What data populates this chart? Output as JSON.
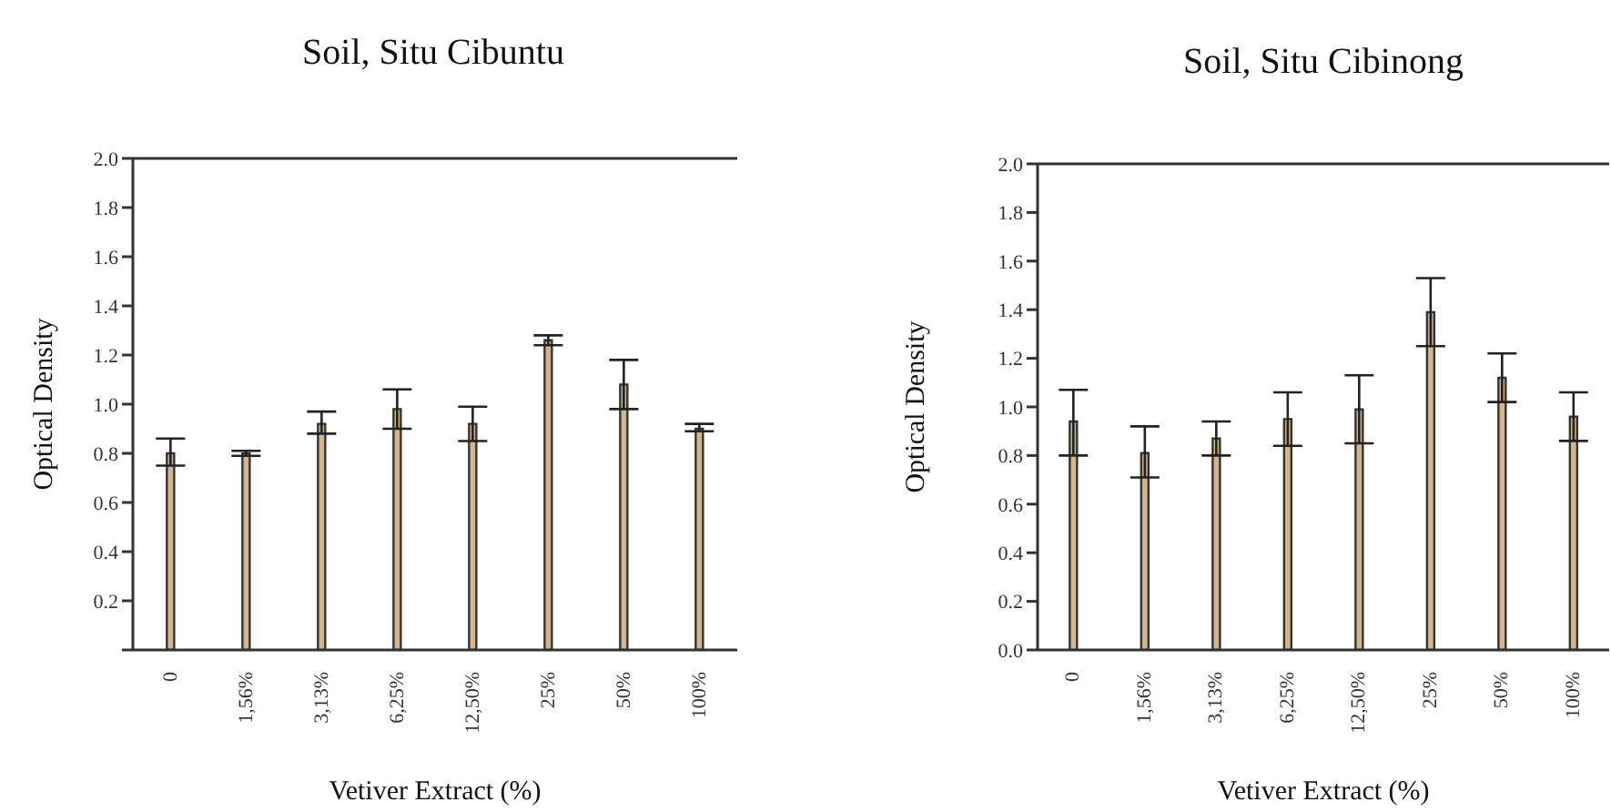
{
  "chart_data": [
    {
      "type": "bar",
      "title": "Soil, Situ Cibuntu",
      "xlabel": "Vetiver Extract (%)",
      "ylabel": "Optical Density",
      "categories": [
        "0",
        "1,56%",
        "3,13%",
        "6,25%",
        "12,50%",
        "25%",
        "50%",
        "100%"
      ],
      "values": [
        0.8,
        0.8,
        0.92,
        0.98,
        0.92,
        1.26,
        1.08,
        0.9
      ],
      "errors": [
        [
          0.75,
          0.86
        ],
        [
          0.79,
          0.81
        ],
        [
          0.88,
          0.97
        ],
        [
          0.9,
          1.06
        ],
        [
          0.85,
          0.99
        ],
        [
          1.24,
          1.28
        ],
        [
          0.98,
          1.18
        ],
        [
          0.89,
          0.92
        ]
      ],
      "color": "#d4b48a",
      "ylim": [
        0,
        2.0
      ],
      "yticks": [
        {
          "value": 0,
          "label": null
        },
        {
          "value": 0.2,
          "label": "0.2"
        },
        {
          "value": 0.4,
          "label": "0.4"
        },
        {
          "value": 0.6,
          "label": "0.6"
        },
        {
          "value": 0.8,
          "label": "0.8"
        },
        {
          "value": 1.0,
          "label": "1.0"
        },
        {
          "value": 1.2,
          "label": "1.2"
        },
        {
          "value": 1.4,
          "label": "1.4"
        },
        {
          "value": 1.6,
          "label": "1.6"
        },
        {
          "value": 1.8,
          "label": "1.8"
        },
        {
          "value": 2.0,
          "label": "2.0"
        }
      ],
      "grid": false
    },
    {
      "type": "bar",
      "title": "Soil, Situ Cibinong",
      "xlabel": "Vetiver Extract (%)",
      "ylabel": "Optical Density",
      "categories": [
        "0",
        "1,56%",
        "3,13%",
        "6,25%",
        "12,50%",
        "25%",
        "50%",
        "100%"
      ],
      "values": [
        0.94,
        0.81,
        0.87,
        0.95,
        0.99,
        1.39,
        1.12,
        0.96
      ],
      "errors": [
        [
          0.8,
          1.07
        ],
        [
          0.71,
          0.92
        ],
        [
          0.8,
          0.94
        ],
        [
          0.84,
          1.06
        ],
        [
          0.85,
          1.13
        ],
        [
          1.25,
          1.53
        ],
        [
          1.02,
          1.22
        ],
        [
          0.86,
          1.06
        ]
      ],
      "color": "#d4b48a",
      "ylim": [
        0,
        2.0
      ],
      "yticks": [
        {
          "value": 0,
          "label": "0.0"
        },
        {
          "value": 0.2,
          "label": "0.2"
        },
        {
          "value": 0.4,
          "label": "0.4"
        },
        {
          "value": 0.6,
          "label": "0.6"
        },
        {
          "value": 0.8,
          "label": "0.8"
        },
        {
          "value": 1.0,
          "label": "1.0"
        },
        {
          "value": 1.2,
          "label": "1.2"
        },
        {
          "value": 1.4,
          "label": "1.4"
        },
        {
          "value": 1.6,
          "label": "1.6"
        },
        {
          "value": 1.8,
          "label": "1.8"
        },
        {
          "value": 2.0,
          "label": "2.0"
        }
      ],
      "grid": false
    }
  ]
}
